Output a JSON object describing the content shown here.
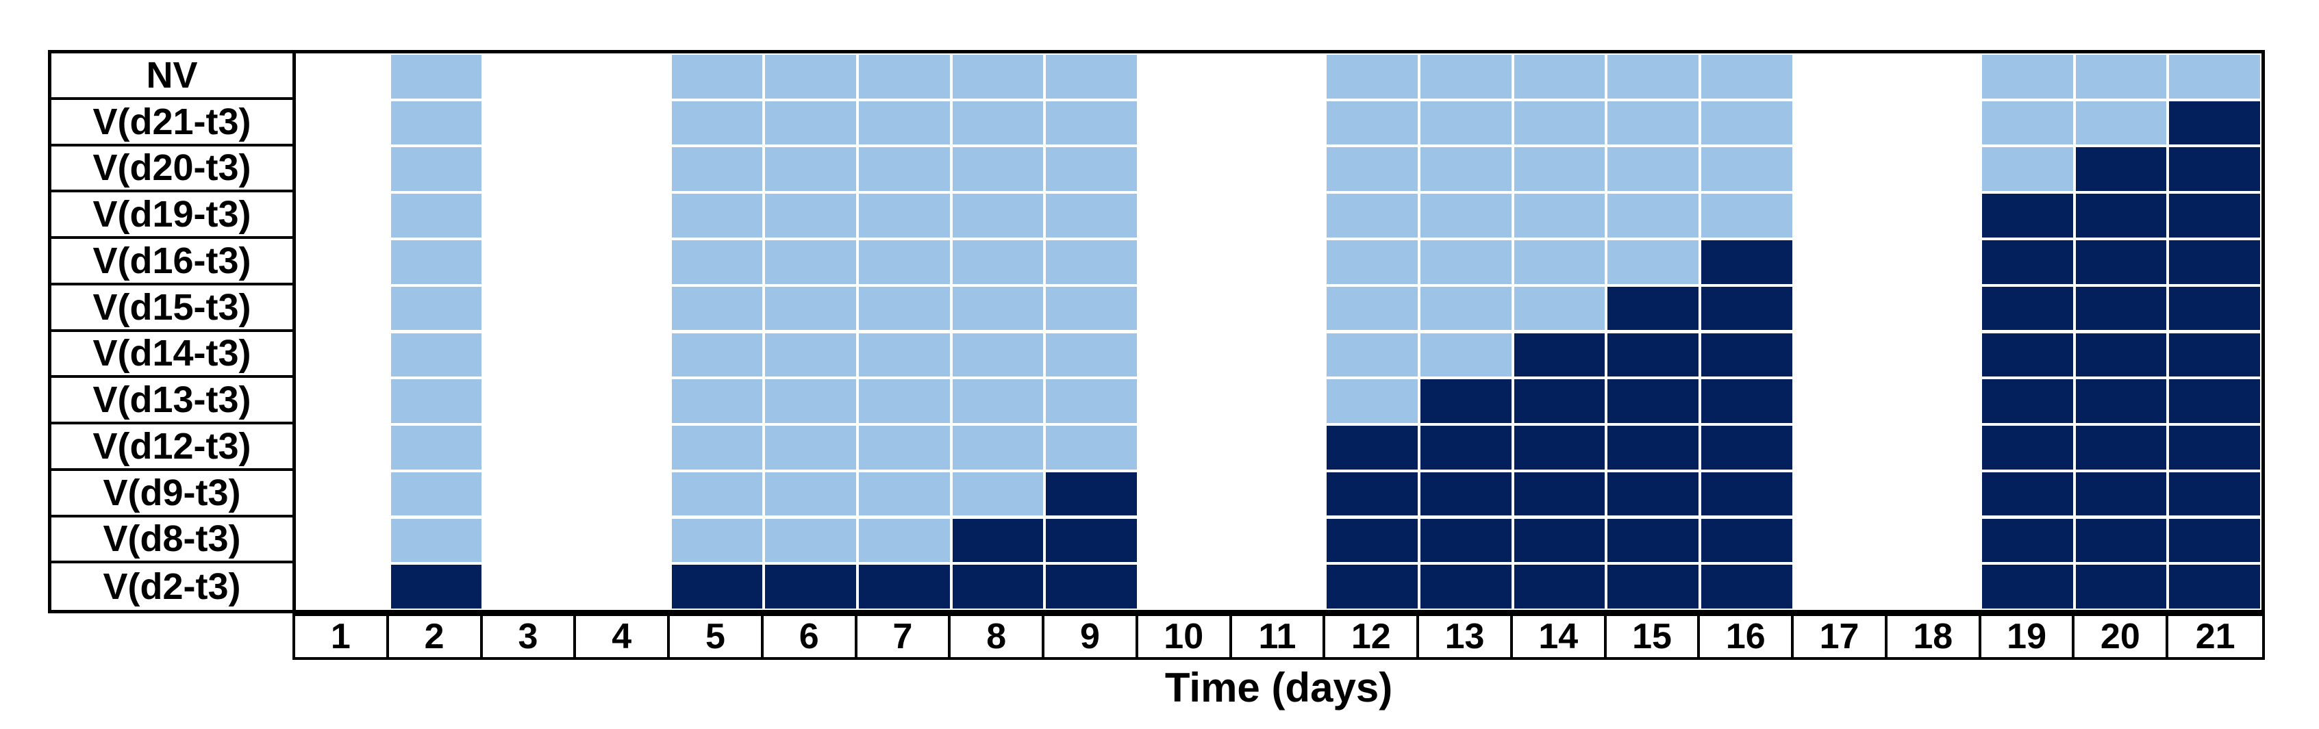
{
  "figure": {
    "axis_title": "Time (days)"
  },
  "chart_data": {
    "type": "heatmap",
    "title": "",
    "xlabel": "Time (days)",
    "ylabel": "",
    "x_ticks": [
      "1",
      "2",
      "3",
      "4",
      "5",
      "6",
      "7",
      "8",
      "9",
      "10",
      "11",
      "12",
      "13",
      "14",
      "15",
      "16",
      "17",
      "18",
      "19",
      "20",
      "21"
    ],
    "rows": [
      "NV",
      "V(d21-t3)",
      "V(d20-t3)",
      "V(d19-t3)",
      "V(d16-t3)",
      "V(d15-t3)",
      "V(d14-t3)",
      "V(d13-t3)",
      "V(d12-t3)",
      "V(d9-t3)",
      "V(d8-t3)",
      "V(d2-t3)"
    ],
    "active_days": [
      2,
      5,
      6,
      7,
      8,
      9,
      12,
      13,
      14,
      15,
      16,
      19,
      20,
      21
    ],
    "cell_state_legend": {
      "0": "white_empty",
      "1": "light_blue",
      "2": "dark_blue"
    },
    "colors": {
      "light_blue": "#9DC3E6",
      "dark_blue": "#04205C",
      "grid_gap": "#FFFFFF",
      "border": "#000000"
    },
    "matrix": [
      [
        0,
        1,
        0,
        0,
        1,
        1,
        1,
        1,
        1,
        0,
        0,
        1,
        1,
        1,
        1,
        1,
        0,
        0,
        1,
        1,
        1
      ],
      [
        0,
        1,
        0,
        0,
        1,
        1,
        1,
        1,
        1,
        0,
        0,
        1,
        1,
        1,
        1,
        1,
        0,
        0,
        1,
        1,
        2
      ],
      [
        0,
        1,
        0,
        0,
        1,
        1,
        1,
        1,
        1,
        0,
        0,
        1,
        1,
        1,
        1,
        1,
        0,
        0,
        1,
        2,
        2
      ],
      [
        0,
        1,
        0,
        0,
        1,
        1,
        1,
        1,
        1,
        0,
        0,
        1,
        1,
        1,
        1,
        1,
        0,
        0,
        2,
        2,
        2
      ],
      [
        0,
        1,
        0,
        0,
        1,
        1,
        1,
        1,
        1,
        0,
        0,
        1,
        1,
        1,
        1,
        2,
        0,
        0,
        2,
        2,
        2
      ],
      [
        0,
        1,
        0,
        0,
        1,
        1,
        1,
        1,
        1,
        0,
        0,
        1,
        1,
        1,
        2,
        2,
        0,
        0,
        2,
        2,
        2
      ],
      [
        0,
        1,
        0,
        0,
        1,
        1,
        1,
        1,
        1,
        0,
        0,
        1,
        1,
        2,
        2,
        2,
        0,
        0,
        2,
        2,
        2
      ],
      [
        0,
        1,
        0,
        0,
        1,
        1,
        1,
        1,
        1,
        0,
        0,
        1,
        2,
        2,
        2,
        2,
        0,
        0,
        2,
        2,
        2
      ],
      [
        0,
        1,
        0,
        0,
        1,
        1,
        1,
        1,
        1,
        0,
        0,
        2,
        2,
        2,
        2,
        2,
        0,
        0,
        2,
        2,
        2
      ],
      [
        0,
        1,
        0,
        0,
        1,
        1,
        1,
        1,
        2,
        0,
        0,
        2,
        2,
        2,
        2,
        2,
        0,
        0,
        2,
        2,
        2
      ],
      [
        0,
        1,
        0,
        0,
        1,
        1,
        1,
        2,
        2,
        0,
        0,
        2,
        2,
        2,
        2,
        2,
        0,
        0,
        2,
        2,
        2
      ],
      [
        0,
        2,
        0,
        0,
        2,
        2,
        2,
        2,
        2,
        0,
        0,
        2,
        2,
        2,
        2,
        2,
        0,
        0,
        2,
        2,
        2
      ]
    ]
  }
}
